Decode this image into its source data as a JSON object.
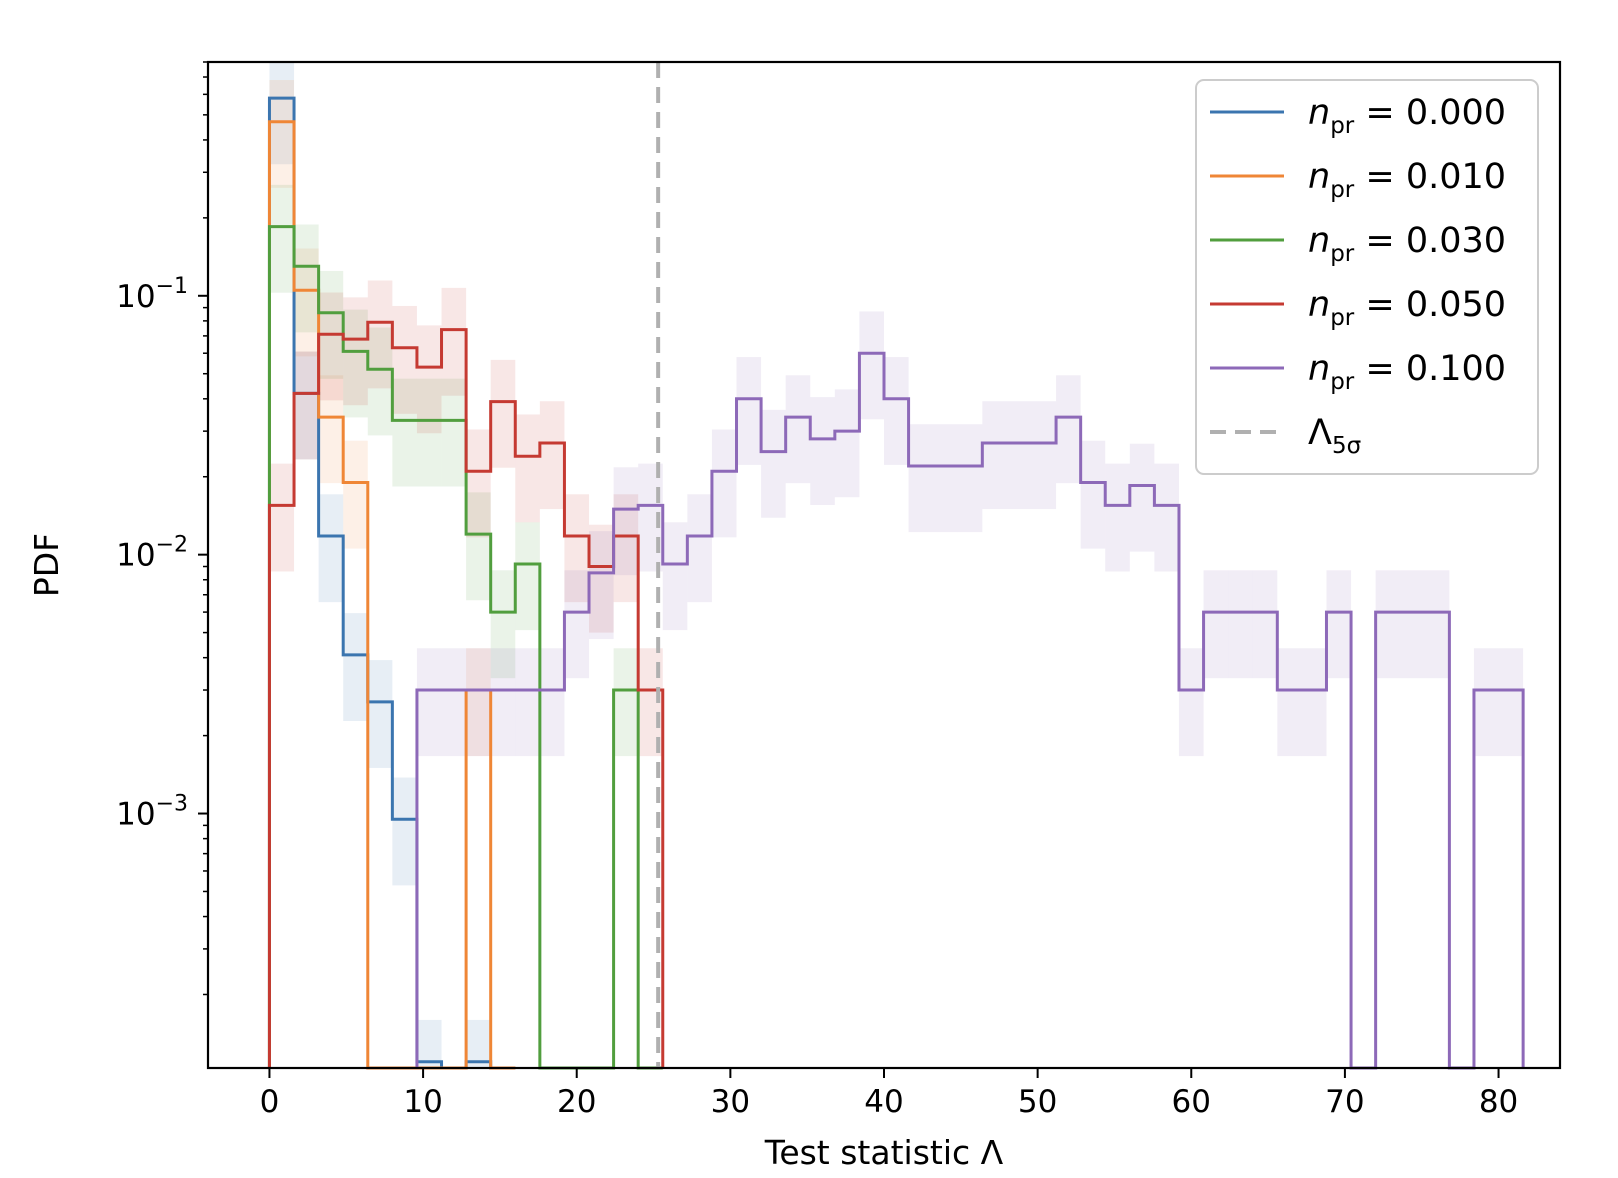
{
  "chart_data": {
    "type": "line",
    "histogram": true,
    "xlabel": "Test statistic Λ",
    "ylabel": "PDF",
    "xlim": [
      -4,
      84
    ],
    "ylim": [
      0.000104,
      0.8
    ],
    "yscale": "log",
    "grid": false,
    "legend_position": "top-right",
    "x_ticks": [
      0,
      10,
      20,
      30,
      40,
      50,
      60,
      70,
      80
    ],
    "x_tick_labels": [
      "0",
      "10",
      "20",
      "30",
      "40",
      "50",
      "60",
      "70",
      "80"
    ],
    "y_ticks": [
      0.1,
      0.01,
      0.001
    ],
    "y_tick_labels": [
      {
        "base": "10",
        "exp": "−1"
      },
      {
        "base": "10",
        "exp": "−2"
      },
      {
        "base": "10",
        "exp": "−3"
      }
    ],
    "bin_width": 1.6,
    "series": [
      {
        "name": "0.000",
        "color": "#3b75af",
        "x_start": 0,
        "values": [
          0.58,
          0.042,
          0.0118,
          0.0041,
          0.0027,
          0.00095,
          0.00011,
          0.000104,
          0.00011,
          0.000104
        ]
      },
      {
        "name": "0.010",
        "color": "#ef8636",
        "x_start": 0,
        "values": [
          0.47,
          0.105,
          0.034,
          0.019,
          0.000104,
          0.000104,
          0.000104,
          0.000104,
          0.003,
          0.000104
        ]
      },
      {
        "name": "0.030",
        "color": "#519e3e",
        "x_start": 0,
        "values": [
          0.185,
          0.13,
          0.086,
          0.061,
          0.052,
          0.033,
          0.033,
          0.033,
          0.012,
          0.006,
          0.0092,
          0.000104,
          0.000104,
          0.000104,
          0.003,
          0.000104
        ]
      },
      {
        "name": "0.050",
        "color": "#c53a32",
        "x_start": 0,
        "values": [
          0.0155,
          0.042,
          0.071,
          0.068,
          0.079,
          0.063,
          0.053,
          0.074,
          0.021,
          0.039,
          0.024,
          0.027,
          0.0118,
          0.009,
          0.0118,
          0.003
        ]
      },
      {
        "name": "0.100",
        "color": "#8d69b8",
        "x_start": 9.6,
        "values": [
          0.003,
          0.003,
          0.003,
          0.003,
          0.003,
          0.003,
          0.006,
          0.0085,
          0.015,
          0.0155,
          0.0092,
          0.0118,
          0.021,
          0.04,
          0.025,
          0.034,
          0.028,
          0.03,
          0.06,
          0.04,
          0.022,
          0.022,
          0.022,
          0.027,
          0.027,
          0.027,
          0.034,
          0.019,
          0.0155,
          0.0185,
          0.0155,
          0.003,
          0.006,
          0.006,
          0.006,
          0.003,
          0.003,
          0.006,
          0.000104,
          0.006,
          0.006,
          0.006,
          0.000104,
          0.003,
          0.003
        ]
      }
    ],
    "threshold": {
      "name": "Λ5σ",
      "x": 25.3,
      "color": "#b0b0b0"
    },
    "legend": {
      "var": "n",
      "sub": "pr",
      "threshold_label": "Λ",
      "threshold_sub": "5σ"
    }
  }
}
